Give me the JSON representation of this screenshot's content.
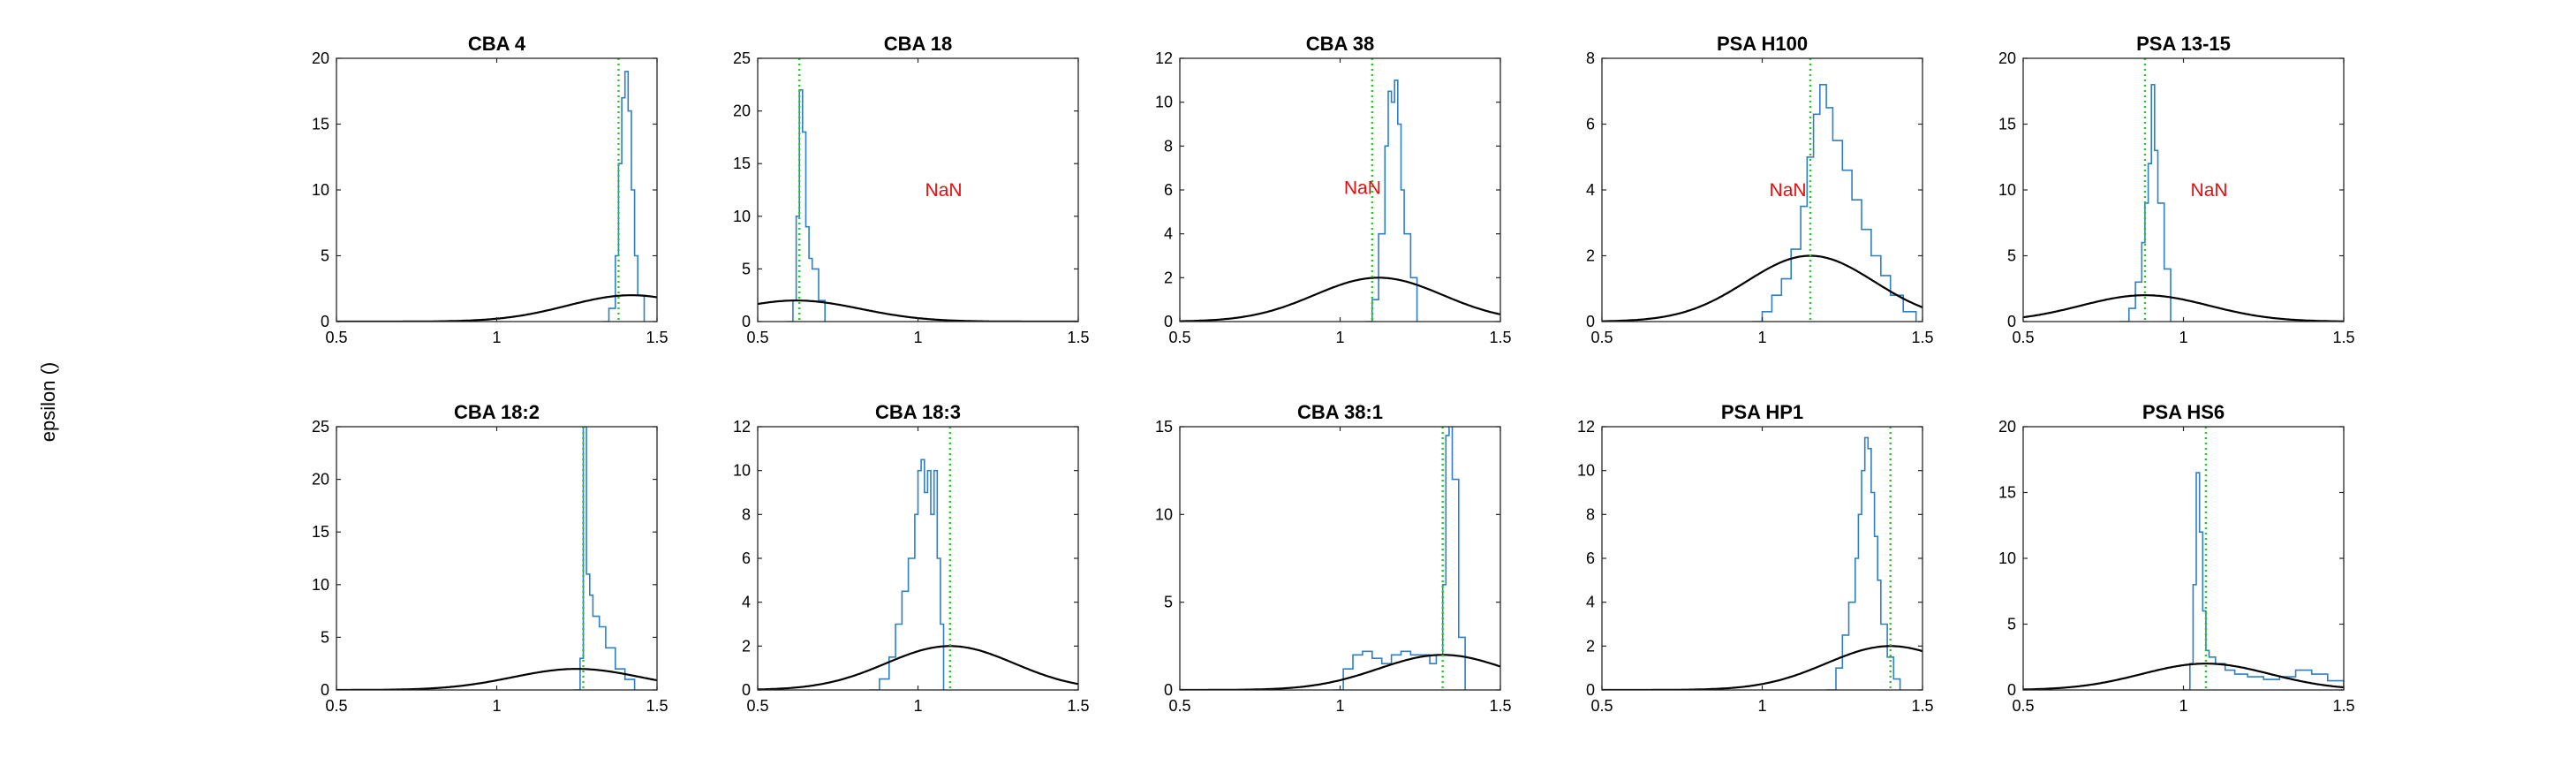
{
  "figure": {
    "ylabel": "epsilon ()"
  },
  "style": {
    "hist_color": "#2f7fc1",
    "gauss_color": "#000000",
    "marker_color": "#22cc22",
    "annotation_color": "#e01010"
  },
  "chart_data": [
    {
      "type": "area",
      "title": "CBA 4",
      "xlim": [
        0.5,
        1.5
      ],
      "ylim": [
        0,
        20
      ],
      "xticks": [
        0.5,
        1,
        1.5
      ],
      "xtick_labels": [
        "0.5",
        "1",
        "1.5"
      ],
      "yticks": [
        0,
        5,
        10,
        15,
        20
      ],
      "ytick_labels": [
        "0",
        "5",
        "10",
        "15",
        "20"
      ],
      "histogram": {
        "x": [
          1.33,
          1.35,
          1.37,
          1.38,
          1.39,
          1.4,
          1.41,
          1.42,
          1.43,
          1.44,
          1.46
        ],
        "y": [
          0,
          1,
          5,
          12,
          17,
          19,
          16,
          10,
          5,
          2,
          0
        ]
      },
      "gaussian": {
        "mean": 1.42,
        "sd": 0.2,
        "peak": 2
      },
      "marker_x": 1.38,
      "annotation": ""
    },
    {
      "type": "area",
      "title": "CBA 18",
      "xlim": [
        0.5,
        1.5
      ],
      "ylim": [
        0,
        25
      ],
      "xticks": [
        0.5,
        1,
        1.5
      ],
      "xtick_labels": [
        "0.5",
        "1",
        "1.5"
      ],
      "yticks": [
        0,
        5,
        10,
        15,
        20,
        25
      ],
      "ytick_labels": [
        "0",
        "5",
        "10",
        "15",
        "20",
        "25"
      ],
      "histogram": {
        "x": [
          0.59,
          0.61,
          0.62,
          0.63,
          0.64,
          0.65,
          0.66,
          0.67,
          0.69,
          0.71
        ],
        "y": [
          0,
          2,
          10,
          22,
          18,
          9,
          6,
          5,
          2,
          0
        ]
      },
      "gaussian": {
        "mean": 0.62,
        "sd": 0.2,
        "peak": 2
      },
      "marker_x": 0.63,
      "annotation": "NaN",
      "annotation_pos": [
        1.08,
        12.5
      ]
    },
    {
      "type": "area",
      "title": "CBA 38",
      "xlim": [
        0.5,
        1.5
      ],
      "ylim": [
        0,
        12
      ],
      "xticks": [
        0.5,
        1,
        1.5
      ],
      "xtick_labels": [
        "0.5",
        "1",
        "1.5"
      ],
      "yticks": [
        0,
        2,
        4,
        6,
        8,
        10,
        12
      ],
      "ytick_labels": [
        "0",
        "2",
        "4",
        "6",
        "8",
        "10",
        "12"
      ],
      "histogram": {
        "x": [
          1.08,
          1.1,
          1.12,
          1.14,
          1.15,
          1.16,
          1.17,
          1.18,
          1.19,
          1.2,
          1.22,
          1.24
        ],
        "y": [
          0,
          1,
          4,
          8,
          10.5,
          10,
          11,
          9,
          6,
          4,
          2,
          0
        ]
      },
      "gaussian": {
        "mean": 1.12,
        "sd": 0.2,
        "peak": 2
      },
      "marker_x": 1.1,
      "annotation": "NaN",
      "annotation_pos": [
        1.07,
        6.1
      ]
    },
    {
      "type": "area",
      "title": "PSA H100",
      "xlim": [
        0.5,
        1.5
      ],
      "ylim": [
        0,
        8
      ],
      "xticks": [
        0.5,
        1,
        1.5
      ],
      "xtick_labels": [
        "0.5",
        "1",
        "1.5"
      ],
      "yticks": [
        0,
        2,
        4,
        6,
        8
      ],
      "ytick_labels": [
        "0",
        "2",
        "4",
        "6",
        "8"
      ],
      "histogram": {
        "x": [
          0.97,
          1.0,
          1.03,
          1.06,
          1.09,
          1.12,
          1.14,
          1.16,
          1.18,
          1.2,
          1.22,
          1.25,
          1.28,
          1.31,
          1.34,
          1.37,
          1.4,
          1.44,
          1.48
        ],
        "y": [
          0,
          0.3,
          0.8,
          1.3,
          2.2,
          3.5,
          5.0,
          6.3,
          7.2,
          6.5,
          5.5,
          4.6,
          3.7,
          2.8,
          2.0,
          1.4,
          0.8,
          0.3,
          0
        ]
      },
      "gaussian": {
        "mean": 1.15,
        "sd": 0.2,
        "peak": 2
      },
      "marker_x": 1.15,
      "annotation": "NaN",
      "annotation_pos": [
        1.08,
        4.0
      ]
    },
    {
      "type": "area",
      "title": "PSA 13-15",
      "xlim": [
        0.5,
        1.5
      ],
      "ylim": [
        0,
        20
      ],
      "xticks": [
        0.5,
        1,
        1.5
      ],
      "xtick_labels": [
        "0.5",
        "1",
        "1.5"
      ],
      "yticks": [
        0,
        5,
        10,
        15,
        20
      ],
      "ytick_labels": [
        "0",
        "5",
        "10",
        "15",
        "20"
      ],
      "histogram": {
        "x": [
          0.8,
          0.83,
          0.85,
          0.87,
          0.88,
          0.89,
          0.9,
          0.91,
          0.92,
          0.94,
          0.96
        ],
        "y": [
          0,
          1,
          3,
          6,
          9,
          12,
          18,
          13,
          9,
          4,
          0
        ]
      },
      "gaussian": {
        "mean": 0.88,
        "sd": 0.2,
        "peak": 2
      },
      "marker_x": 0.88,
      "annotation": "NaN",
      "annotation_pos": [
        1.08,
        10.0
      ]
    },
    {
      "type": "area",
      "title": "CBA 18:2",
      "xlim": [
        0.5,
        1.5
      ],
      "ylim": [
        0,
        25
      ],
      "xticks": [
        0.5,
        1,
        1.5
      ],
      "xtick_labels": [
        "0.5",
        "1",
        "1.5"
      ],
      "yticks": [
        0,
        5,
        10,
        15,
        20,
        25
      ],
      "ytick_labels": [
        "0",
        "5",
        "10",
        "15",
        "20",
        "25"
      ],
      "histogram": {
        "x": [
          1.24,
          1.26,
          1.27,
          1.28,
          1.29,
          1.3,
          1.32,
          1.34,
          1.37,
          1.4,
          1.43
        ],
        "y": [
          0,
          3,
          25,
          11,
          9,
          7,
          6,
          4,
          2,
          1,
          0
        ]
      },
      "gaussian": {
        "mean": 1.25,
        "sd": 0.2,
        "peak": 2
      },
      "marker_x": 1.27,
      "annotation": ""
    },
    {
      "type": "area",
      "title": "CBA 18:3",
      "xlim": [
        0.5,
        1.5
      ],
      "ylim": [
        0,
        12
      ],
      "xticks": [
        0.5,
        1,
        1.5
      ],
      "xtick_labels": [
        "0.5",
        "1",
        "1.5"
      ],
      "yticks": [
        0,
        2,
        4,
        6,
        8,
        10,
        12
      ],
      "ytick_labels": [
        "0",
        "2",
        "4",
        "6",
        "8",
        "10",
        "12"
      ],
      "histogram": {
        "x": [
          0.85,
          0.88,
          0.91,
          0.93,
          0.95,
          0.97,
          0.99,
          1.0,
          1.01,
          1.02,
          1.03,
          1.04,
          1.05,
          1.06,
          1.07,
          1.08
        ],
        "y": [
          0,
          0.5,
          1.5,
          3,
          4.5,
          6,
          8,
          10,
          10.5,
          9,
          10,
          8,
          10,
          6,
          3,
          0
        ]
      },
      "gaussian": {
        "mean": 1.1,
        "sd": 0.2,
        "peak": 2
      },
      "marker_x": 1.1,
      "annotation": ""
    },
    {
      "type": "area",
      "title": "CBA 38:1",
      "xlim": [
        0.5,
        1.5
      ],
      "ylim": [
        0,
        15
      ],
      "xticks": [
        0.5,
        1,
        1.5
      ],
      "xtick_labels": [
        "0.5",
        "1",
        "1.5"
      ],
      "yticks": [
        0,
        5,
        10,
        15
      ],
      "ytick_labels": [
        "0",
        "5",
        "10",
        "15"
      ],
      "histogram": {
        "x": [
          0.98,
          1.01,
          1.04,
          1.07,
          1.1,
          1.13,
          1.16,
          1.19,
          1.22,
          1.25,
          1.28,
          1.3,
          1.32,
          1.33,
          1.34,
          1.35,
          1.37,
          1.39
        ],
        "y": [
          0,
          1.2,
          2.0,
          2.2,
          1.8,
          1.5,
          2.0,
          2.2,
          2.0,
          2.0,
          1.5,
          2.0,
          6.0,
          14.5,
          15.3,
          12.0,
          3.0,
          0
        ]
      },
      "gaussian": {
        "mean": 1.32,
        "sd": 0.2,
        "peak": 2
      },
      "marker_x": 1.32,
      "annotation": ""
    },
    {
      "type": "area",
      "title": "PSA HP1",
      "xlim": [
        0.5,
        1.5
      ],
      "ylim": [
        0,
        12
      ],
      "xticks": [
        0.5,
        1,
        1.5
      ],
      "xtick_labels": [
        "0.5",
        "1",
        "1.5"
      ],
      "yticks": [
        0,
        2,
        4,
        6,
        8,
        10,
        12
      ],
      "ytick_labels": [
        "0",
        "2",
        "4",
        "6",
        "8",
        "10",
        "12"
      ],
      "histogram": {
        "x": [
          1.2,
          1.23,
          1.25,
          1.27,
          1.29,
          1.3,
          1.31,
          1.32,
          1.33,
          1.34,
          1.35,
          1.36,
          1.37,
          1.39,
          1.41,
          1.43
        ],
        "y": [
          0,
          1,
          2.5,
          4,
          6,
          8,
          10,
          11.5,
          11,
          9,
          7,
          5,
          3,
          1.5,
          0.5,
          0
        ]
      },
      "gaussian": {
        "mean": 1.4,
        "sd": 0.2,
        "peak": 2
      },
      "marker_x": 1.4,
      "annotation": ""
    },
    {
      "type": "area",
      "title": "PSA HS6",
      "xlim": [
        0.5,
        1.5
      ],
      "ylim": [
        0,
        20
      ],
      "xticks": [
        0.5,
        1,
        1.5
      ],
      "xtick_labels": [
        "0.5",
        "1",
        "1.5"
      ],
      "yticks": [
        0,
        5,
        10,
        15,
        20
      ],
      "ytick_labels": [
        "0",
        "5",
        "10",
        "15",
        "20"
      ],
      "histogram": {
        "x": [
          1.0,
          1.02,
          1.03,
          1.04,
          1.05,
          1.06,
          1.07,
          1.08,
          1.1,
          1.13,
          1.16,
          1.2,
          1.25,
          1.3,
          1.35,
          1.4,
          1.45,
          1.5
        ],
        "y": [
          0,
          2,
          8,
          16.5,
          12,
          6,
          3,
          2.5,
          2,
          1.5,
          1.2,
          1.0,
          0.8,
          1.0,
          1.5,
          1.2,
          0.7,
          0.2
        ]
      },
      "gaussian": {
        "mean": 1.07,
        "sd": 0.2,
        "peak": 2
      },
      "marker_x": 1.07,
      "annotation": ""
    }
  ]
}
